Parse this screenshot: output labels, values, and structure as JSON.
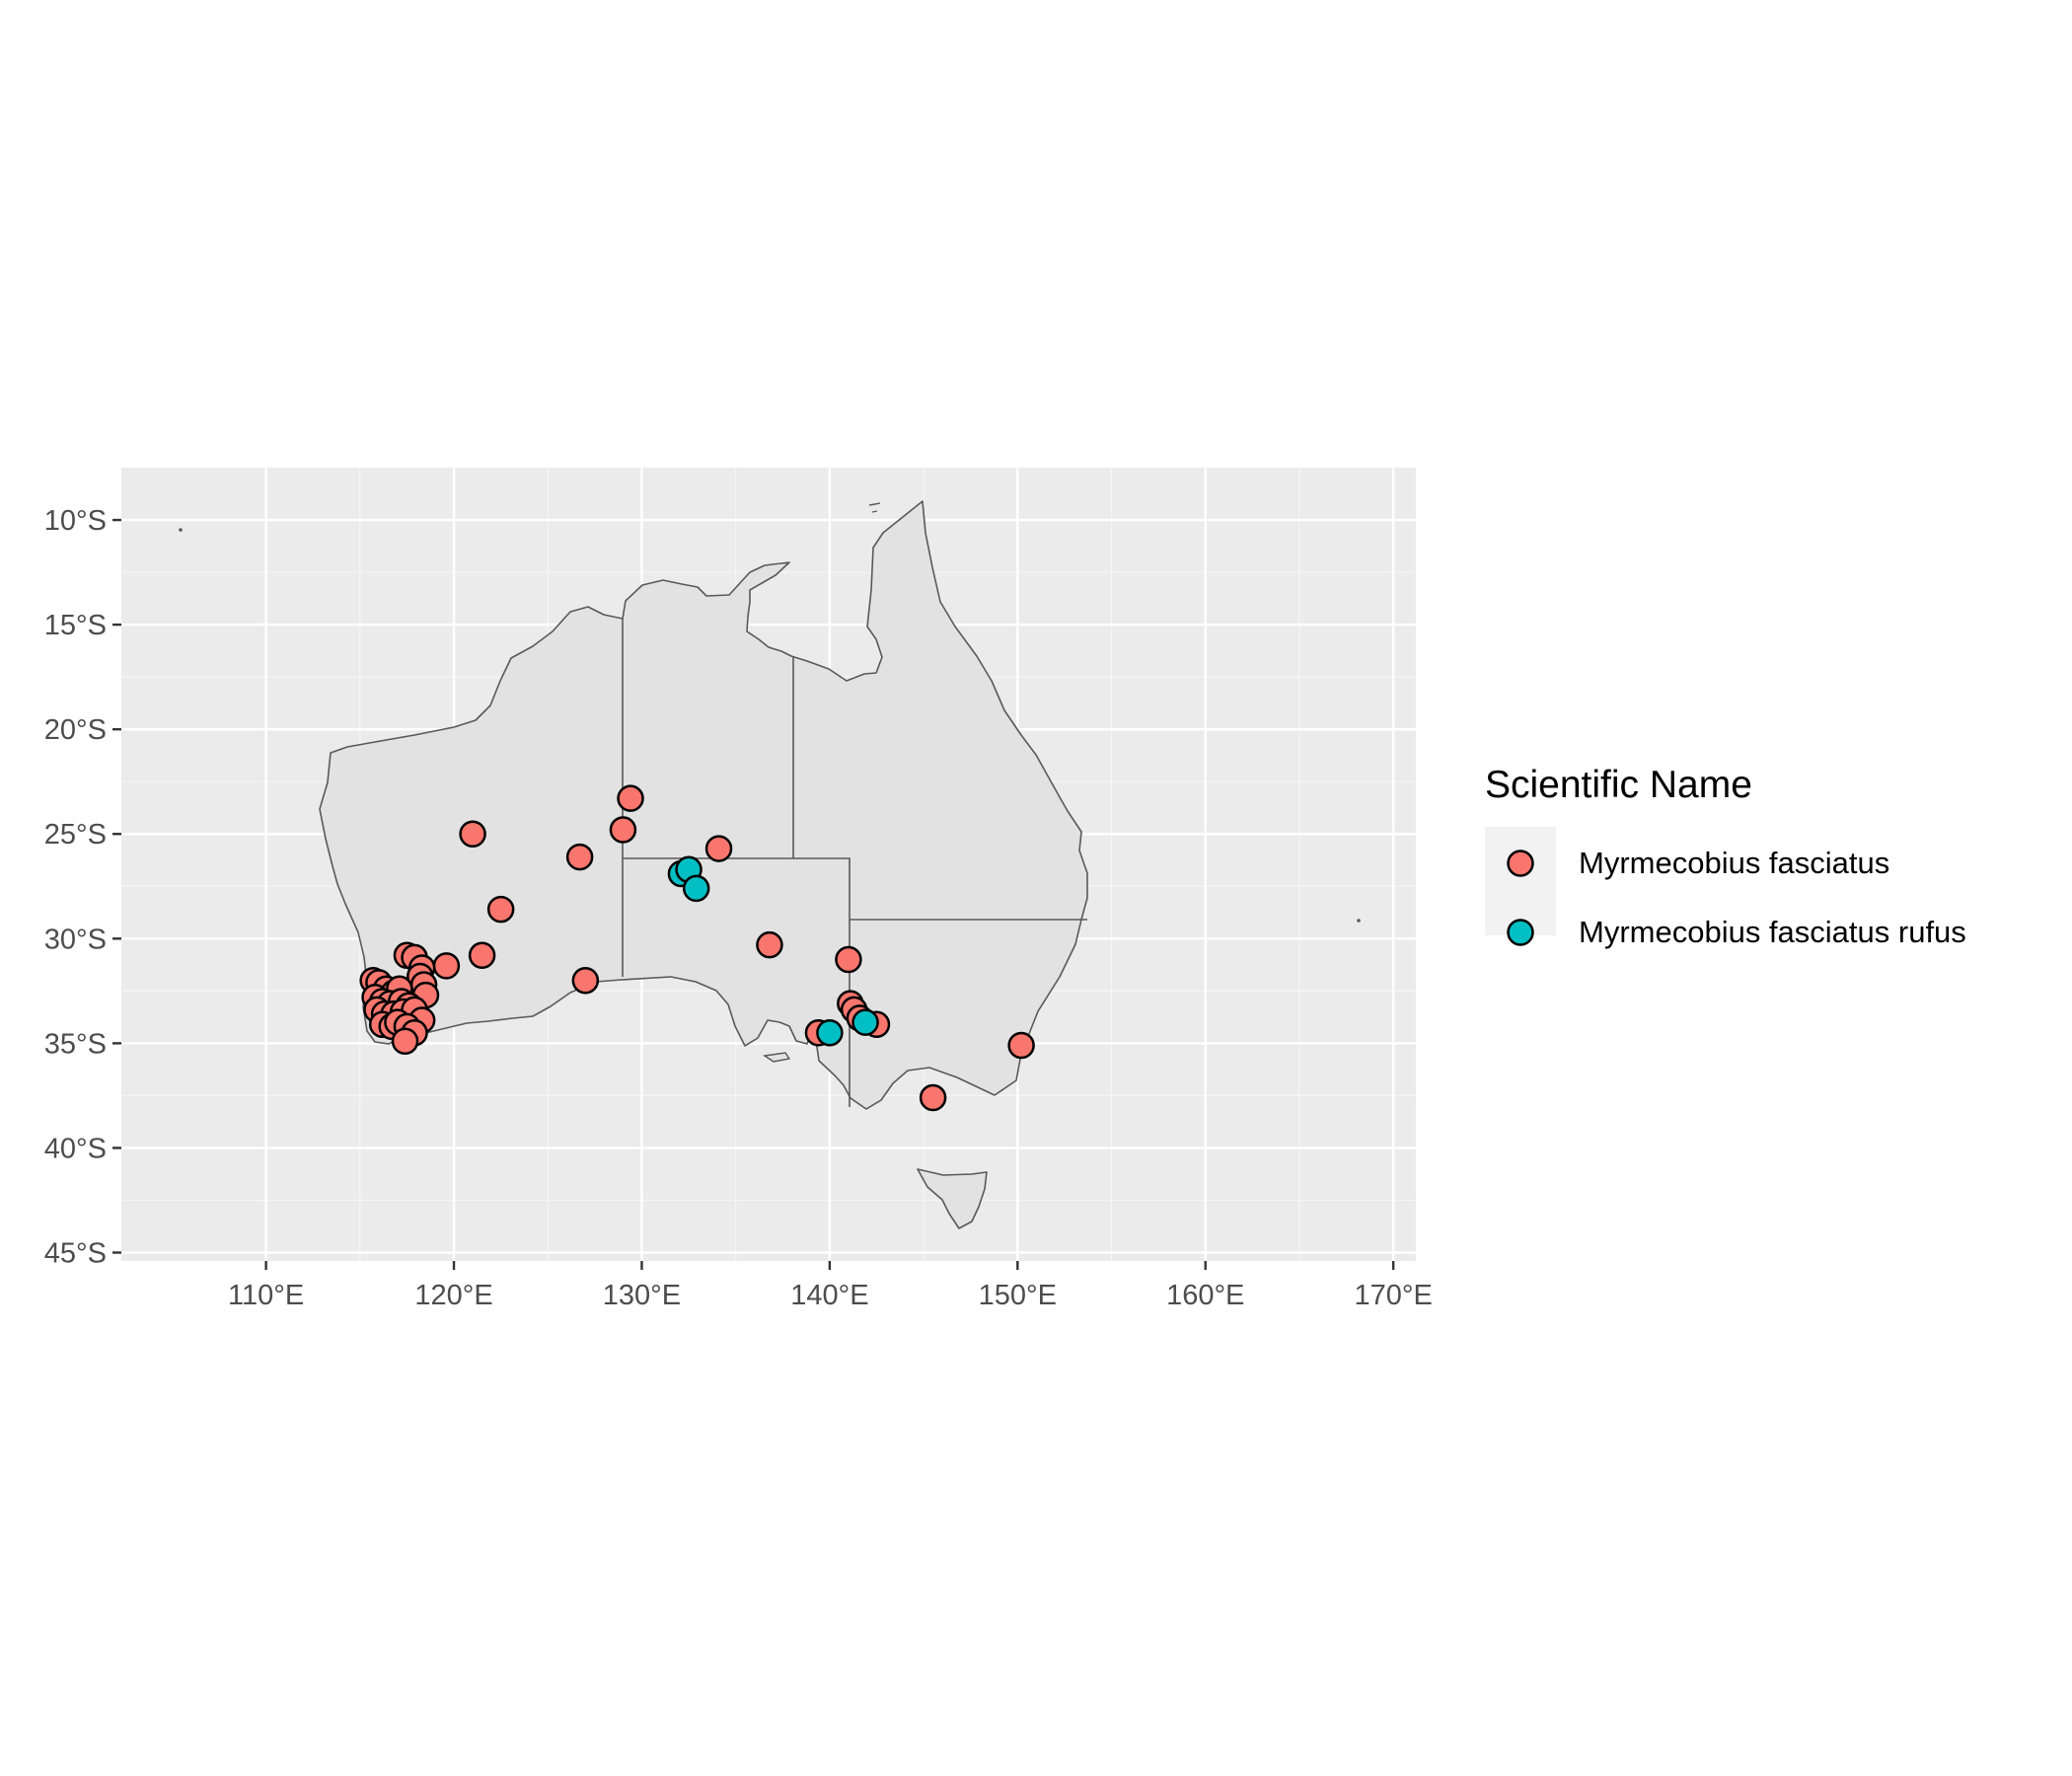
{
  "chart_data": {
    "type": "scatter",
    "xlim": [
      102.3,
      171.2
    ],
    "ylim": [
      -45.4,
      -7.5
    ],
    "x_ticks": [
      110,
      120,
      130,
      140,
      150,
      160,
      170
    ],
    "y_ticks": [
      -10,
      -15,
      -20,
      -25,
      -30,
      -35,
      -40,
      -45
    ],
    "x_tick_labels": [
      "110°E",
      "120°E",
      "130°E",
      "140°E",
      "150°E",
      "160°E",
      "170°E"
    ],
    "y_tick_labels": [
      "10°S",
      "15°S",
      "20°S",
      "25°S",
      "30°S",
      "35°S",
      "40°S",
      "45°S"
    ],
    "grid": true,
    "legend": {
      "title": "Scientific Name",
      "position": "right"
    },
    "colors": {
      "panel_background": "#ebebeb",
      "grid_line": "#ffffff",
      "land_fill": "#e2e2e2",
      "border_line": "#595959",
      "point_outline": "#000000"
    },
    "series": [
      {
        "name": "Myrmecobius fasciatus",
        "color": "#f8766d",
        "points": [
          [
            129.4,
            -23.3
          ],
          [
            129.0,
            -24.8
          ],
          [
            121.0,
            -25.0
          ],
          [
            126.7,
            -26.1
          ],
          [
            134.1,
            -25.7
          ],
          [
            122.5,
            -28.6
          ],
          [
            121.5,
            -30.8
          ],
          [
            119.6,
            -31.3
          ],
          [
            127.0,
            -32.0
          ],
          [
            136.8,
            -30.3
          ],
          [
            141.0,
            -31.0
          ],
          [
            141.1,
            -33.1
          ],
          [
            141.3,
            -33.4
          ],
          [
            141.6,
            -33.8
          ],
          [
            142.5,
            -34.1
          ],
          [
            139.4,
            -34.5
          ],
          [
            150.2,
            -35.1
          ],
          [
            145.5,
            -37.6
          ],
          [
            117.5,
            -30.8
          ],
          [
            117.9,
            -30.9
          ],
          [
            118.3,
            -31.4
          ],
          [
            118.2,
            -31.8
          ],
          [
            118.4,
            -32.2
          ],
          [
            118.5,
            -32.7
          ],
          [
            115.7,
            -32.0
          ],
          [
            116.0,
            -32.1
          ],
          [
            116.4,
            -32.4
          ],
          [
            116.8,
            -32.6
          ],
          [
            117.1,
            -32.4
          ],
          [
            115.8,
            -32.8
          ],
          [
            116.2,
            -33.0
          ],
          [
            116.6,
            -33.1
          ],
          [
            117.2,
            -33.0
          ],
          [
            117.6,
            -33.2
          ],
          [
            115.9,
            -33.4
          ],
          [
            116.3,
            -33.6
          ],
          [
            116.8,
            -33.6
          ],
          [
            117.3,
            -33.5
          ],
          [
            117.9,
            -33.4
          ],
          [
            118.3,
            -33.9
          ],
          [
            116.2,
            -34.1
          ],
          [
            116.7,
            -34.2
          ],
          [
            117.0,
            -34.0
          ],
          [
            117.5,
            -34.2
          ],
          [
            117.9,
            -34.5
          ],
          [
            117.4,
            -34.9
          ]
        ]
      },
      {
        "name": "Myrmecobius fasciatus rufus",
        "color": "#00bfc4",
        "points": [
          [
            132.1,
            -26.9
          ],
          [
            132.5,
            -26.7
          ],
          [
            132.9,
            -27.6
          ],
          [
            140.0,
            -34.5
          ],
          [
            141.9,
            -34.0
          ]
        ]
      }
    ]
  }
}
